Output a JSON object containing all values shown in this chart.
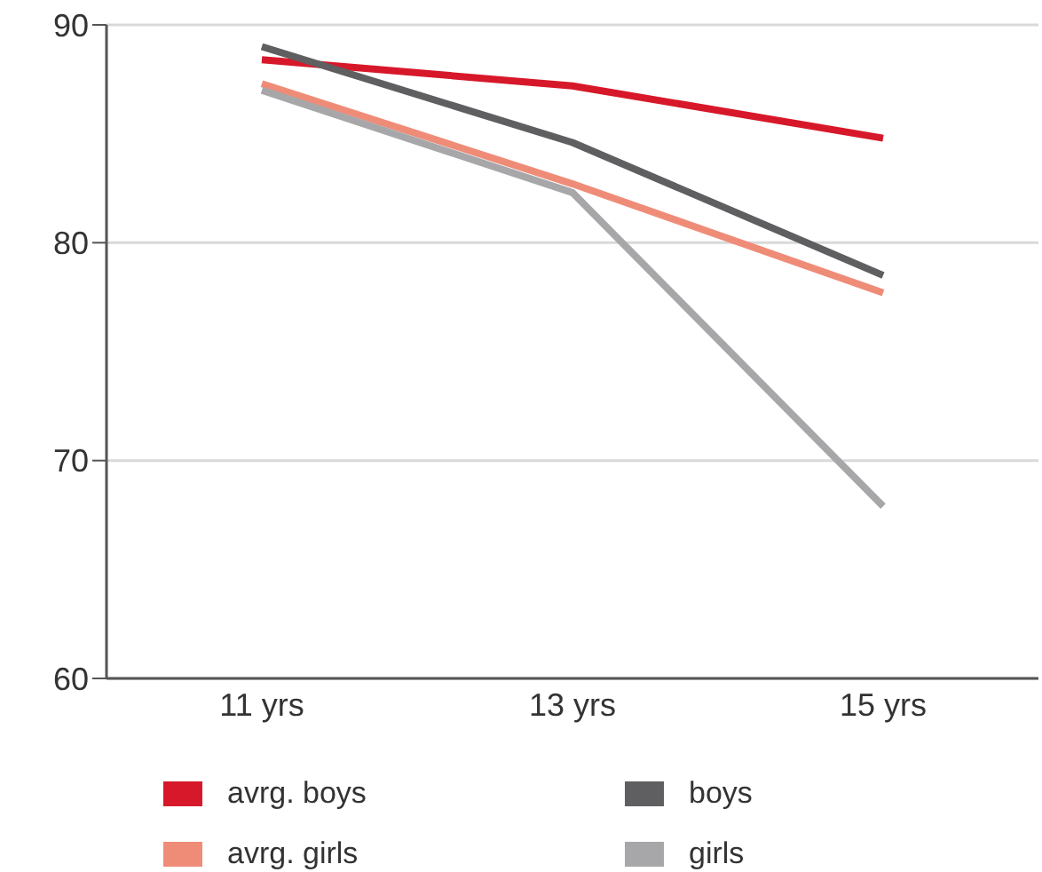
{
  "chart_data": {
    "type": "line",
    "categories": [
      "11 yrs",
      "13 yrs",
      "15 yrs"
    ],
    "series": [
      {
        "name": "avrg. boys",
        "color": "#d7182a",
        "values": [
          88.4,
          87.2,
          84.8
        ]
      },
      {
        "name": "boys",
        "color": "#5f5f61",
        "values": [
          89.0,
          84.6,
          78.5
        ]
      },
      {
        "name": "avrg. girls",
        "color": "#ef8c78",
        "values": [
          87.3,
          82.7,
          77.7
        ]
      },
      {
        "name": "girls",
        "color": "#a7a7aa",
        "values": [
          87.0,
          82.3,
          67.9
        ]
      }
    ],
    "ylim": [
      60,
      90
    ],
    "yticks": [
      60,
      70,
      80,
      90
    ],
    "grid": "y",
    "legend": "bottom",
    "marker": "none",
    "line_style": "solid"
  }
}
